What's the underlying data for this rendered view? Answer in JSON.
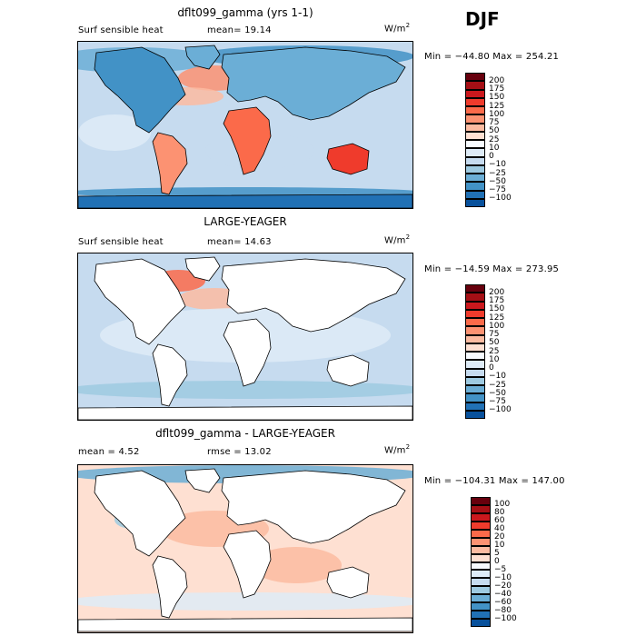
{
  "season": "DJF",
  "units_text": "W/m",
  "units_sup": "2",
  "panels": [
    {
      "title": "dflt099_gamma (yrs 1-1)",
      "variable": "Surf sensible heat",
      "stat": "mean=  19.14",
      "minmax": "Min = −44.80 Max = 254.21",
      "colorbar": {
        "labels": [
          "200",
          "175",
          "150",
          "125",
          "100",
          "75",
          "50",
          "25",
          "10",
          "0",
          "−10",
          "−25",
          "−50",
          "−75",
          "−100"
        ],
        "colors": [
          "#67000d",
          "#a50f15",
          "#cb181d",
          "#ef3b2c",
          "#fb6a4a",
          "#fc9272",
          "#fcbba1",
          "#fee0d2",
          "#f7fbff",
          "#deebf7",
          "#c6dbef",
          "#9ecae1",
          "#6baed6",
          "#4292c6",
          "#2171b5",
          "#08519c"
        ]
      },
      "fill": "full"
    },
    {
      "title": "LARGE-YEAGER",
      "variable": "Surf sensible heat",
      "stat": "mean=  14.63",
      "minmax": "Min = −14.59 Max = 273.95",
      "colorbar": {
        "labels": [
          "200",
          "175",
          "150",
          "125",
          "100",
          "75",
          "50",
          "25",
          "10",
          "0",
          "−10",
          "−25",
          "−50",
          "−75",
          "−100"
        ],
        "colors": [
          "#67000d",
          "#a50f15",
          "#cb181d",
          "#ef3b2c",
          "#fb6a4a",
          "#fc9272",
          "#fcbba1",
          "#fee0d2",
          "#f7fbff",
          "#deebf7",
          "#c6dbef",
          "#9ecae1",
          "#6baed6",
          "#4292c6",
          "#2171b5",
          "#08519c"
        ]
      },
      "fill": "ocean"
    },
    {
      "title": "dflt099_gamma - LARGE-YEAGER",
      "variable": "mean =    4.52",
      "stat": "rmse =   13.02",
      "minmax": "Min = −104.31 Max = 147.00",
      "colorbar": {
        "labels": [
          "100",
          "80",
          "60",
          "40",
          "20",
          "10",
          "5",
          "0",
          "−5",
          "−10",
          "−20",
          "−40",
          "−60",
          "−80",
          "−100"
        ],
        "colors": [
          "#67000d",
          "#a50f15",
          "#cb181d",
          "#ef3b2c",
          "#fb6a4a",
          "#fc9272",
          "#fcbba1",
          "#fee0d2",
          "#f7fbff",
          "#deebf7",
          "#c6dbef",
          "#9ecae1",
          "#6baed6",
          "#4292c6",
          "#2171b5",
          "#08519c"
        ]
      },
      "fill": "diff"
    }
  ]
}
